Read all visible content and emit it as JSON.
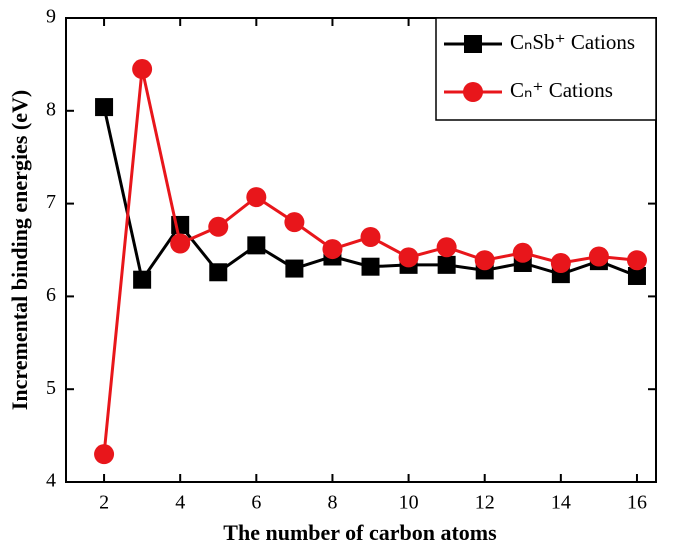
{
  "chart_data": {
    "type": "line",
    "x_label": "The number of carbon atoms",
    "y_label": "Incremental binding energies (eV)",
    "x": [
      2,
      3,
      4,
      5,
      6,
      7,
      8,
      9,
      10,
      11,
      12,
      13,
      14,
      15,
      16
    ],
    "series": [
      {
        "name": "CₙSb⁺ Cations",
        "color": "#000000",
        "marker": "square",
        "values": [
          8.04,
          6.18,
          6.77,
          6.26,
          6.55,
          6.3,
          6.43,
          6.32,
          6.34,
          6.34,
          6.28,
          6.36,
          6.24,
          6.38,
          6.22
        ]
      },
      {
        "name": "Cₙ⁺ Cations",
        "color": "#e8161b",
        "marker": "circle",
        "values": [
          4.3,
          8.45,
          6.57,
          6.75,
          7.07,
          6.8,
          6.51,
          6.64,
          6.42,
          6.53,
          6.39,
          6.47,
          6.36,
          6.43,
          6.39
        ]
      }
    ],
    "xlim": [
      1,
      16.5
    ],
    "xticks": [
      2,
      4,
      6,
      8,
      10,
      12,
      14,
      16
    ],
    "ylim": [
      4,
      9
    ],
    "yticks": [
      4,
      5,
      6,
      7,
      8,
      9
    ],
    "legend": "upper-right"
  }
}
